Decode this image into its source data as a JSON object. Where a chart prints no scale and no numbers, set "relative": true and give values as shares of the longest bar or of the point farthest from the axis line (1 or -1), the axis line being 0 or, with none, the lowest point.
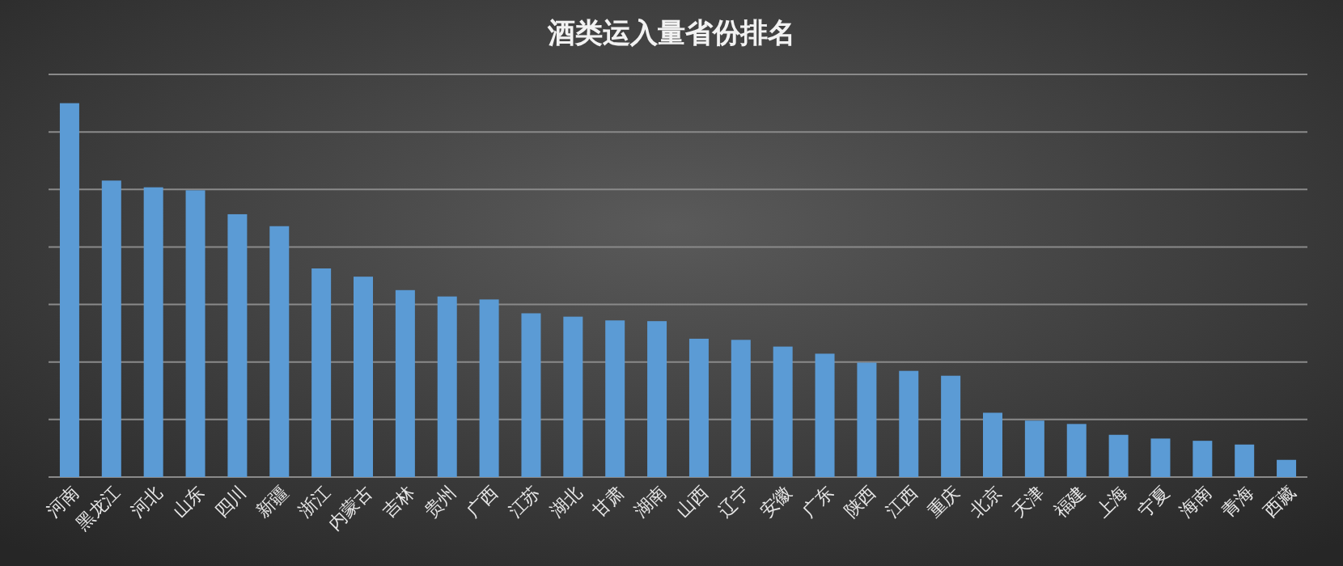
{
  "chart_data": {
    "type": "bar",
    "title": "酒类运入量省份排名",
    "relative": true,
    "grid": "y",
    "color": "#5b9bd5",
    "categories": [
      "河南",
      "黑龙江",
      "河北",
      "山东",
      "四川",
      "新疆",
      "浙江",
      "内蒙古",
      "吉林",
      "贵州",
      "广西",
      "江苏",
      "湖北",
      "甘肃",
      "湖南",
      "山西",
      "辽宁",
      "安徽",
      "广东",
      "陕西",
      "江西",
      "重庆",
      "北京",
      "天津",
      "福建",
      "上海",
      "宁夏",
      "海南",
      "青海",
      "西藏"
    ],
    "values": [
      1,
      0.793,
      0.775,
      0.767,
      0.703,
      0.671,
      0.558,
      0.536,
      0.5,
      0.483,
      0.475,
      0.438,
      0.429,
      0.419,
      0.417,
      0.37,
      0.367,
      0.349,
      0.33,
      0.306,
      0.284,
      0.271,
      0.172,
      0.151,
      0.142,
      0.113,
      0.103,
      0.097,
      0.087,
      0.046
    ]
  }
}
